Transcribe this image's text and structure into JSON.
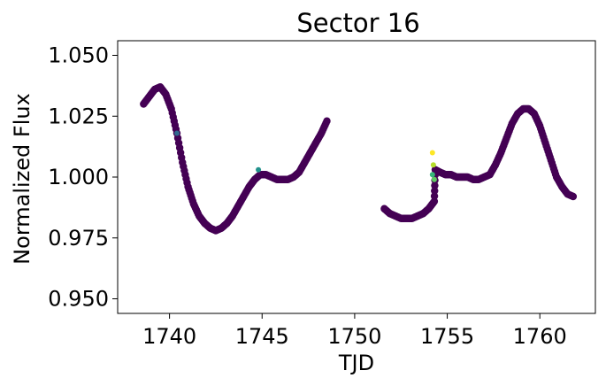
{
  "chart_data": {
    "type": "scatter",
    "title": "Sector 16",
    "xlabel": "TJD",
    "ylabel": "Normalized Flux",
    "xlim": [
      1737.2,
      1763.0
    ],
    "ylim": [
      0.944,
      1.056
    ],
    "x_ticks": [
      1740,
      1745,
      1750,
      1755,
      1760
    ],
    "x_tick_labels": [
      "1740",
      "1745",
      "1750",
      "1755",
      "1760"
    ],
    "y_ticks": [
      0.95,
      0.975,
      1.0,
      1.025,
      1.05
    ],
    "y_tick_labels": [
      "0.950",
      "0.975",
      "1.000",
      "1.025",
      "1.050"
    ],
    "grid": false,
    "colormap": "viridis",
    "point_color": "#440154",
    "segments": [
      {
        "name_shown": false,
        "x": [
          1738.6,
          1738.9,
          1739.2,
          1739.5,
          1739.8,
          1740.1,
          1740.4,
          1740.7,
          1741.0,
          1741.3,
          1741.6,
          1741.9,
          1742.2,
          1742.5,
          1742.8,
          1743.1,
          1743.4,
          1743.7,
          1744.0,
          1744.3,
          1744.6,
          1744.9,
          1745.2,
          1745.5,
          1745.8,
          1746.1,
          1746.4,
          1746.7,
          1747.0,
          1747.3,
          1747.6,
          1747.9,
          1748.2,
          1748.5
        ],
        "y": [
          1.03,
          1.033,
          1.036,
          1.037,
          1.034,
          1.028,
          1.018,
          1.006,
          0.996,
          0.989,
          0.984,
          0.981,
          0.979,
          0.978,
          0.979,
          0.981,
          0.984,
          0.988,
          0.992,
          0.996,
          0.999,
          1.001,
          1.001,
          1.0,
          0.999,
          0.999,
          0.999,
          1.0,
          1.002,
          1.006,
          1.01,
          1.014,
          1.018,
          1.023
        ]
      },
      {
        "name_shown": false,
        "x": [
          1751.6,
          1751.9,
          1752.2,
          1752.5,
          1752.8,
          1753.1,
          1753.4,
          1753.7,
          1754.0,
          1754.3,
          1754.35,
          1754.6,
          1754.9,
          1755.2,
          1755.5,
          1755.8,
          1756.1,
          1756.4,
          1756.7,
          1757.0,
          1757.3,
          1757.6,
          1757.9,
          1758.2,
          1758.5,
          1758.8,
          1759.1,
          1759.4,
          1759.7,
          1760.0,
          1760.3,
          1760.6,
          1760.9,
          1761.2,
          1761.5,
          1761.8
        ],
        "y": [
          0.987,
          0.985,
          0.984,
          0.983,
          0.983,
          0.983,
          0.984,
          0.985,
          0.987,
          0.99,
          1.003,
          1.002,
          1.001,
          1.001,
          1.0,
          1.0,
          1.0,
          0.999,
          0.999,
          1.0,
          1.001,
          1.005,
          1.01,
          1.016,
          1.022,
          1.026,
          1.028,
          1.028,
          1.026,
          1.021,
          1.014,
          1.007,
          1.0,
          0.996,
          0.993,
          0.992
        ]
      }
    ],
    "outliers": [
      {
        "x": 1740.4,
        "y": 1.018,
        "color": "#31688e"
      },
      {
        "x": 1744.8,
        "y": 1.003,
        "color": "#21918c"
      },
      {
        "x": 1754.2,
        "y": 1.01,
        "color": "#fde725"
      },
      {
        "x": 1754.25,
        "y": 1.005,
        "color": "#b5de2b"
      },
      {
        "x": 1754.3,
        "y": 0.999,
        "color": "#5ec962"
      },
      {
        "x": 1754.2,
        "y": 1.001,
        "color": "#35b779"
      }
    ]
  }
}
